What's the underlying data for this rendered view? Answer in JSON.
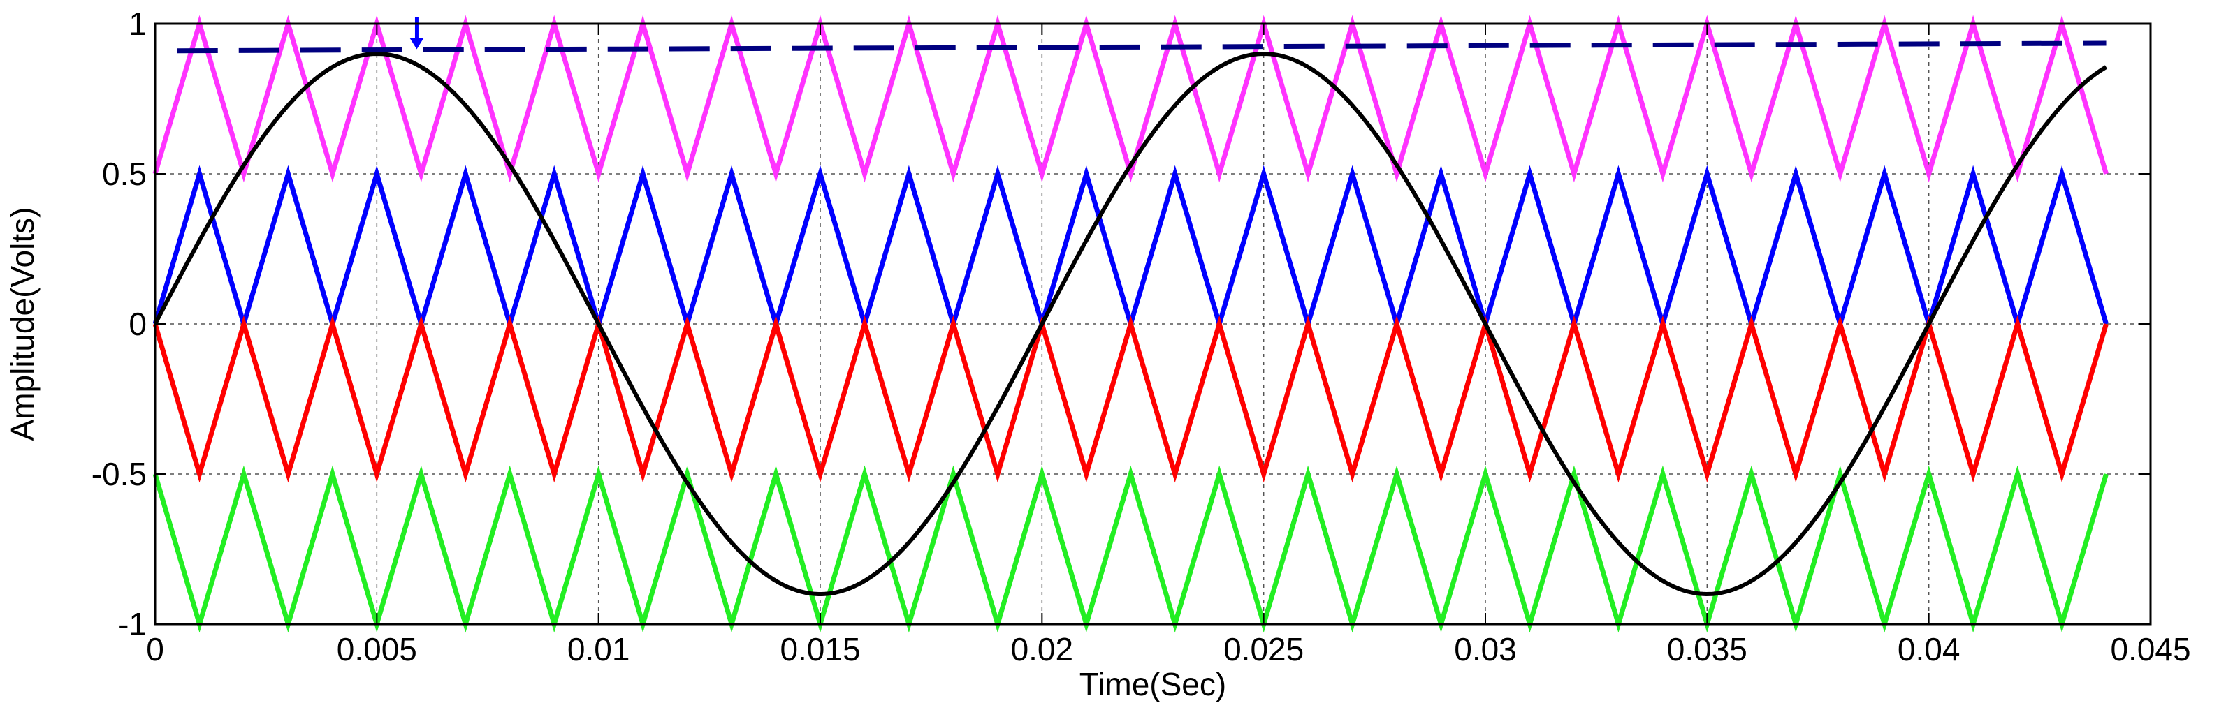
{
  "chart_data": {
    "type": "line",
    "title": "",
    "xlabel": "Time(Sec)",
    "ylabel": "Amplitude(Volts)",
    "xlim": [
      0,
      0.045
    ],
    "ylim": [
      -1,
      1
    ],
    "x_ticks": [
      0,
      0.005,
      0.01,
      0.015,
      0.02,
      0.025,
      0.03,
      0.035,
      0.04,
      0.045
    ],
    "x_tick_labels": [
      "0",
      "0.005",
      "0.01",
      "0.015",
      "0.02",
      "0.025",
      "0.03",
      "0.035",
      "0.04",
      "0.045"
    ],
    "y_ticks": [
      -1,
      -0.5,
      0,
      0.5,
      1
    ],
    "y_tick_labels": [
      "-1",
      "-0.5",
      "0",
      "0.5",
      "1"
    ],
    "grid": true,
    "x_end": 0.044,
    "sine": {
      "color": "#000000",
      "amplitude": 0.9,
      "frequency_hz": 50
    },
    "carriers": [
      {
        "color": "#ff33ff",
        "min": 0.5,
        "max": 1.0,
        "period": 0.002,
        "start": "min"
      },
      {
        "color": "#0000ff",
        "min": 0.0,
        "max": 0.5,
        "period": 0.002,
        "start": "min"
      },
      {
        "color": "#ff0000",
        "min": -0.5,
        "max": 0.0,
        "period": 0.002,
        "start": "max"
      },
      {
        "color": "#22ee22",
        "min": -1.0,
        "max": -0.5,
        "period": 0.002,
        "start": "max"
      }
    ],
    "reference_line": {
      "color": "#000080",
      "style": "dashed",
      "y_start": 0.91,
      "y_end": 0.935
    },
    "annotation_arrow": {
      "color": "#0000ff",
      "x": 0.0059,
      "y_tip": 0.915
    }
  }
}
